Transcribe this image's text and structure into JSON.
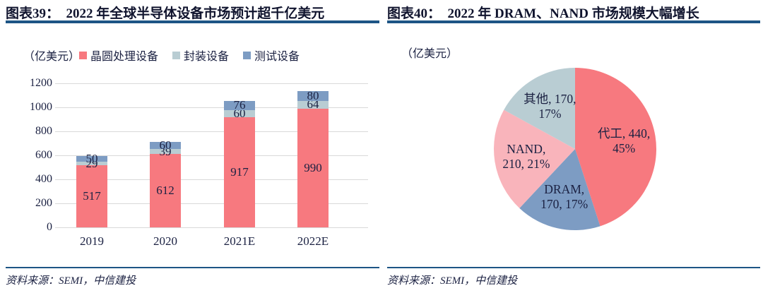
{
  "figures": {
    "left": {
      "title": "图表39：  2022 年全球半导体设备市场预计超千亿美元",
      "source": "资料来源：SEMI，中信建投"
    },
    "right": {
      "title": "图表40：  2022 年 DRAM、NAND 市场规模大幅增长",
      "source": "资料来源：SEMI，中信建投"
    }
  },
  "colors": {
    "rule_blue": "#1d5585",
    "text_navy": "#1b2142",
    "grid_gray": "#d9d9d9",
    "red": "#f7797f",
    "pink": "#f9b4bb",
    "steel_blue": "#7d9cc3",
    "gray_blue": "#b9cdd3"
  },
  "chart_data": [
    {
      "type": "bar",
      "stacked": true,
      "title": "2022 年全球半导体设备市场预计超千亿美元",
      "unit_label": "（亿美元）",
      "categories": [
        "2019",
        "2020",
        "2021E",
        "2022E"
      ],
      "series": [
        {
          "name": "晶圆处理设备",
          "color": "#f7797f",
          "values": [
            517,
            612,
            917,
            990
          ]
        },
        {
          "name": "封装设备",
          "color": "#b9cdd3",
          "values": [
            29,
            39,
            60,
            64
          ]
        },
        {
          "name": "测试设备",
          "color": "#7d9cc3",
          "values": [
            50,
            60,
            76,
            80
          ]
        }
      ],
      "ylim": [
        0,
        1200
      ],
      "yticks": [
        0,
        200,
        400,
        600,
        800,
        1000,
        1200
      ],
      "grid": true,
      "legend_position": "top",
      "data_labels": true
    },
    {
      "type": "pie",
      "title": "2022 年 DRAM、NAND 市场规模大幅增长",
      "unit_label": "（亿美元）",
      "direction": "clockwise",
      "start_angle_deg": 0,
      "slices": [
        {
          "label": "代工",
          "value": 440,
          "pct": "45%",
          "pct_value": 45,
          "color": "#f7797f",
          "label_lines": [
            "代工, 440,",
            "45%"
          ]
        },
        {
          "label": "DRAM",
          "value": 170,
          "pct": "17%",
          "pct_value": 17,
          "color": "#7d9cc3",
          "label_lines": [
            "DRAM,",
            "170, 17%"
          ]
        },
        {
          "label": "NAND",
          "value": 210,
          "pct": "21%",
          "pct_value": 21,
          "color": "#f9b4bb",
          "label_lines": [
            "NAND,",
            "210, 21%"
          ]
        },
        {
          "label": "其他",
          "value": 170,
          "pct": "17%",
          "pct_value": 17,
          "color": "#b9cdd3",
          "label_lines": [
            "其他, 170,",
            "17%"
          ]
        }
      ]
    }
  ]
}
